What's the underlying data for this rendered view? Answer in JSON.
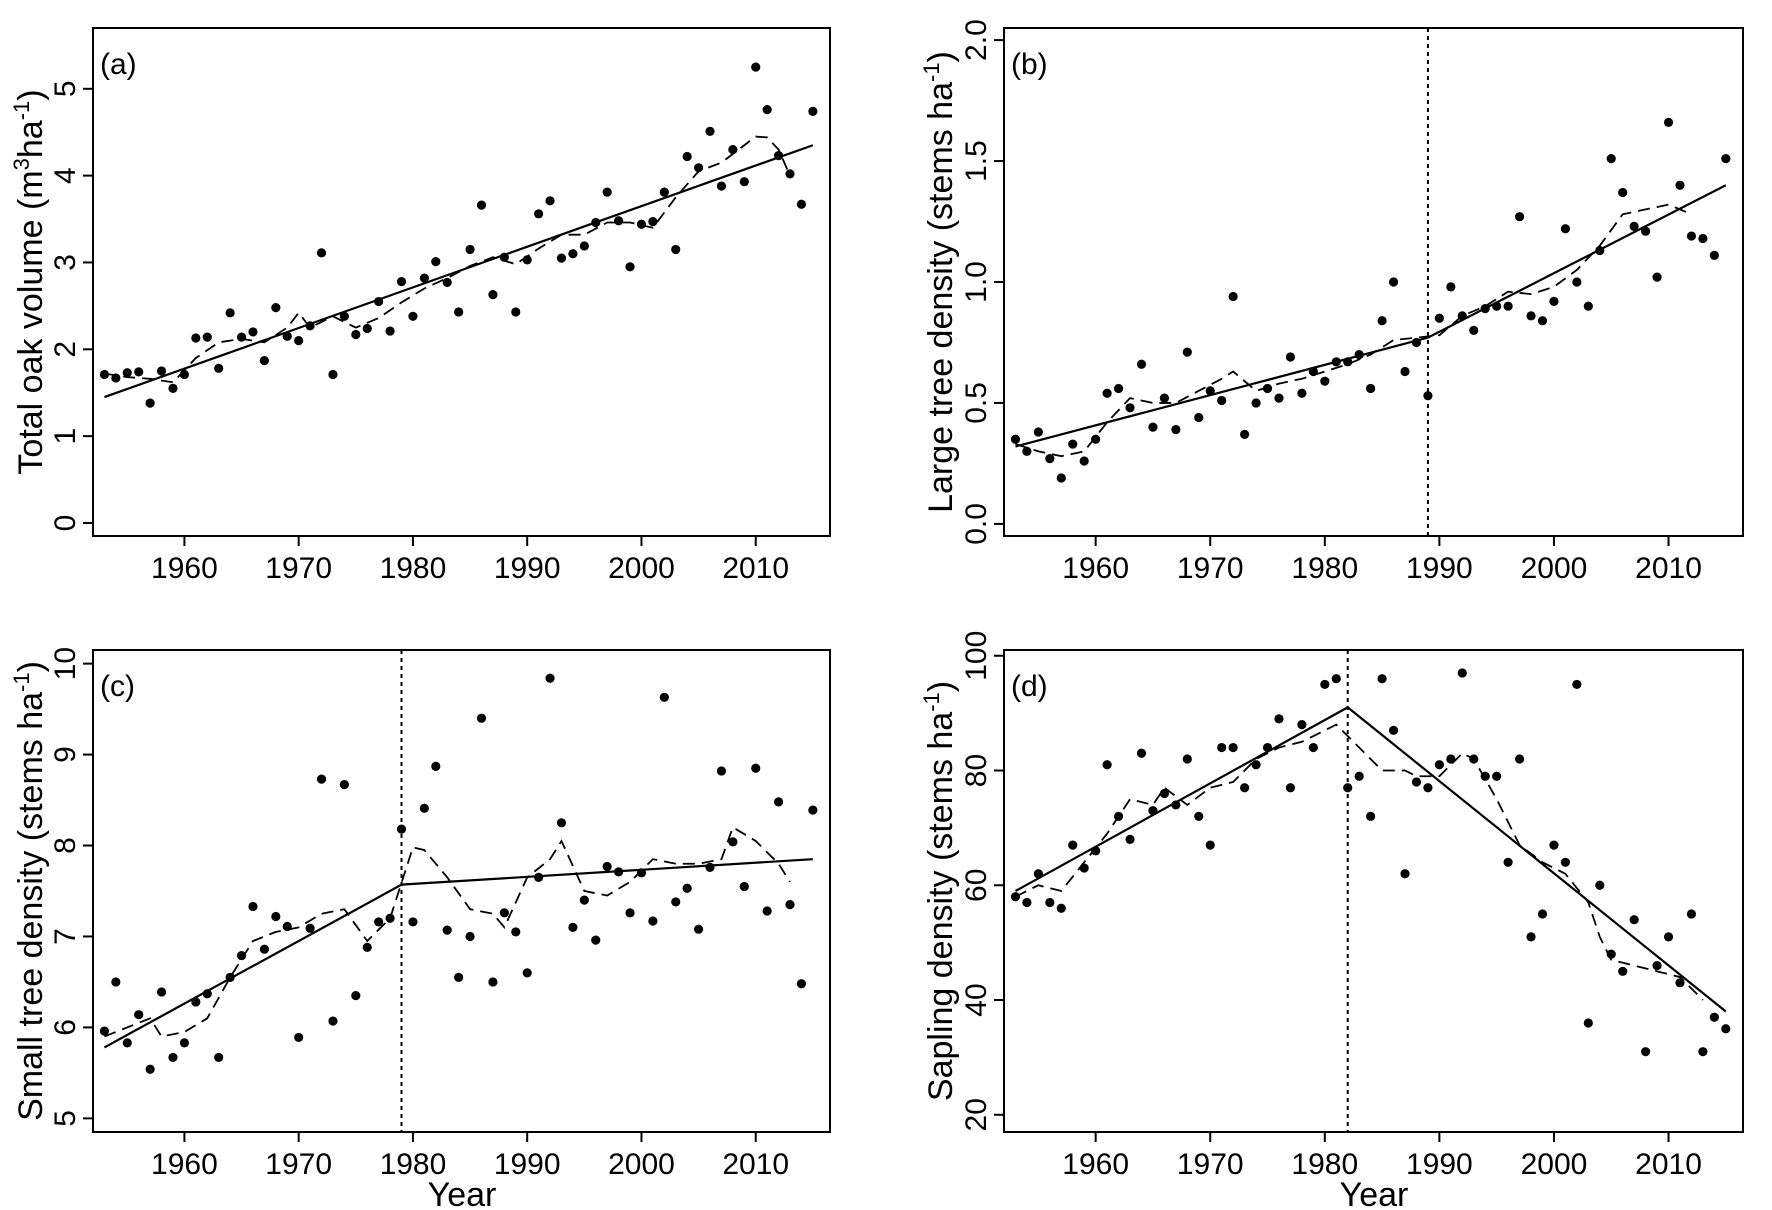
{
  "chart_data": [
    {
      "type": "scatter",
      "panel_label": "(a)",
      "ylabel_main": "Total oak volume (m",
      "ylabel_sup1": "3",
      "ylabel_mid": "ha",
      "ylabel_sup2": "-1",
      "ylabel_end": ")",
      "xlabel": "",
      "xlim": [
        1952,
        2016.5
      ],
      "ylim": [
        -0.15,
        5.7
      ],
      "xticks": [
        1960,
        1970,
        1980,
        1990,
        2000,
        2010
      ],
      "yticks": [
        0,
        1,
        2,
        3,
        4,
        5
      ],
      "ytick_labels": [
        "0",
        "1",
        "2",
        "3",
        "4",
        "5"
      ],
      "breakpoint": null,
      "x": [
        1953,
        1954,
        1955,
        1956,
        1957,
        1958,
        1959,
        1960,
        1961,
        1962,
        1963,
        1964,
        1965,
        1966,
        1967,
        1968,
        1969,
        1970,
        1971,
        1972,
        1973,
        1974,
        1975,
        1976,
        1977,
        1978,
        1979,
        1980,
        1981,
        1982,
        1983,
        1984,
        1985,
        1986,
        1987,
        1988,
        1989,
        1990,
        1991,
        1992,
        1993,
        1994,
        1995,
        1996,
        1997,
        1998,
        1999,
        2000,
        2001,
        2002,
        2003,
        2004,
        2005,
        2006,
        2007,
        2008,
        2009,
        2010,
        2011,
        2012,
        2013,
        2014,
        2015
      ],
      "y": [
        1.71,
        1.67,
        1.73,
        1.74,
        1.38,
        1.75,
        1.55,
        1.71,
        2.13,
        2.14,
        1.78,
        2.42,
        2.14,
        2.2,
        1.87,
        2.48,
        2.15,
        2.1,
        2.27,
        3.11,
        1.71,
        2.38,
        2.17,
        2.24,
        2.55,
        2.21,
        2.78,
        2.38,
        2.82,
        3.01,
        2.77,
        2.43,
        3.15,
        3.66,
        2.63,
        3.06,
        2.43,
        3.03,
        3.56,
        3.71,
        3.05,
        3.1,
        3.19,
        3.46,
        3.81,
        3.48,
        2.95,
        3.44,
        3.47,
        3.81,
        3.15,
        4.22,
        4.09,
        4.51,
        3.88,
        4.3,
        3.93,
        5.25,
        4.76,
        4.23,
        4.02,
        3.67,
        4.74
      ],
      "fit_line": [
        [
          1953,
          1.45
        ],
        [
          2015,
          4.35
        ]
      ],
      "smooth": [
        [
          1953,
          1.72
        ],
        [
          1955,
          1.68
        ],
        [
          1957,
          1.66
        ],
        [
          1959,
          1.62
        ],
        [
          1961,
          1.9
        ],
        [
          1963,
          2.08
        ],
        [
          1965,
          2.12
        ],
        [
          1967,
          2.08
        ],
        [
          1969,
          2.25
        ],
        [
          1970,
          2.42
        ],
        [
          1971,
          2.25
        ],
        [
          1973,
          2.38
        ],
        [
          1975,
          2.25
        ],
        [
          1977,
          2.36
        ],
        [
          1979,
          2.54
        ],
        [
          1981,
          2.7
        ],
        [
          1983,
          2.82
        ],
        [
          1985,
          2.96
        ],
        [
          1987,
          3.06
        ],
        [
          1989,
          2.98
        ],
        [
          1991,
          3.16
        ],
        [
          1993,
          3.32
        ],
        [
          1995,
          3.32
        ],
        [
          1997,
          3.46
        ],
        [
          1999,
          3.46
        ],
        [
          2001,
          3.4
        ],
        [
          2003,
          3.75
        ],
        [
          2005,
          4.05
        ],
        [
          2007,
          4.15
        ],
        [
          2009,
          4.35
        ],
        [
          2010,
          4.45
        ],
        [
          2011,
          4.44
        ],
        [
          2012,
          4.3
        ],
        [
          2013,
          4.0
        ]
      ]
    },
    {
      "type": "scatter",
      "panel_label": "(b)",
      "ylabel_main": "Large tree density (stems ha",
      "ylabel_sup1": "-1",
      "ylabel_mid": "",
      "ylabel_sup2": "",
      "ylabel_end": ")",
      "xlabel": "",
      "xlim": [
        1952,
        2016.5
      ],
      "ylim": [
        -0.05,
        2.05
      ],
      "xticks": [
        1960,
        1970,
        1980,
        1990,
        2000,
        2010
      ],
      "yticks": [
        0.0,
        0.5,
        1.0,
        1.5,
        2.0
      ],
      "ytick_labels": [
        "0.0",
        "0.5",
        "1.0",
        "1.5",
        "2.0"
      ],
      "breakpoint": 1989,
      "x": [
        1953,
        1954,
        1955,
        1956,
        1957,
        1958,
        1959,
        1960,
        1961,
        1962,
        1963,
        1964,
        1965,
        1966,
        1967,
        1968,
        1969,
        1970,
        1971,
        1972,
        1973,
        1974,
        1975,
        1976,
        1977,
        1978,
        1979,
        1980,
        1981,
        1982,
        1983,
        1984,
        1985,
        1986,
        1987,
        1988,
        1989,
        1990,
        1991,
        1992,
        1993,
        1994,
        1995,
        1996,
        1997,
        1998,
        1999,
        2000,
        2001,
        2002,
        2003,
        2004,
        2005,
        2006,
        2007,
        2008,
        2009,
        2010,
        2011,
        2012,
        2013,
        2014,
        2015
      ],
      "y": [
        0.35,
        0.3,
        0.38,
        0.27,
        0.19,
        0.33,
        0.26,
        0.35,
        0.54,
        0.56,
        0.48,
        0.66,
        0.4,
        0.52,
        0.39,
        0.71,
        0.44,
        0.55,
        0.51,
        0.94,
        0.37,
        0.5,
        0.56,
        0.52,
        0.69,
        0.54,
        0.63,
        0.59,
        0.67,
        0.67,
        0.7,
        0.56,
        0.84,
        1.0,
        0.63,
        0.75,
        0.53,
        0.85,
        0.98,
        0.86,
        0.8,
        0.89,
        0.9,
        0.9,
        1.27,
        0.86,
        0.84,
        0.92,
        1.22,
        1.0,
        0.9,
        1.13,
        1.51,
        1.37,
        1.23,
        1.21,
        1.02,
        1.66,
        1.4,
        1.19,
        1.18,
        1.11,
        1.51
      ],
      "fit_line": [
        [
          1953,
          0.32
        ],
        [
          1989,
          0.77
        ],
        [
          2015,
          1.4
        ]
      ],
      "smooth": [
        [
          1953,
          0.33
        ],
        [
          1955,
          0.3
        ],
        [
          1957,
          0.28
        ],
        [
          1959,
          0.3
        ],
        [
          1961,
          0.42
        ],
        [
          1963,
          0.52
        ],
        [
          1965,
          0.5
        ],
        [
          1967,
          0.5
        ],
        [
          1969,
          0.55
        ],
        [
          1971,
          0.6
        ],
        [
          1972,
          0.63
        ],
        [
          1974,
          0.55
        ],
        [
          1976,
          0.58
        ],
        [
          1978,
          0.6
        ],
        [
          1980,
          0.63
        ],
        [
          1982,
          0.66
        ],
        [
          1984,
          0.7
        ],
        [
          1986,
          0.76
        ],
        [
          1988,
          0.77
        ],
        [
          1990,
          0.78
        ],
        [
          1992,
          0.86
        ],
        [
          1994,
          0.9
        ],
        [
          1996,
          0.96
        ],
        [
          1998,
          0.95
        ],
        [
          2000,
          0.98
        ],
        [
          2002,
          1.05
        ],
        [
          2004,
          1.15
        ],
        [
          2006,
          1.28
        ],
        [
          2008,
          1.3
        ],
        [
          2010,
          1.32
        ],
        [
          2012,
          1.28
        ]
      ]
    },
    {
      "type": "scatter",
      "panel_label": "(c)",
      "ylabel_main": "Small tree density (stems ha",
      "ylabel_sup1": "-1",
      "ylabel_mid": "",
      "ylabel_sup2": "",
      "ylabel_end": ")",
      "xlabel": "Year",
      "xlim": [
        1952,
        2016.5
      ],
      "ylim": [
        4.85,
        10.15
      ],
      "xticks": [
        1960,
        1970,
        1980,
        1990,
        2000,
        2010
      ],
      "yticks": [
        5,
        6,
        7,
        8,
        9,
        10
      ],
      "ytick_labels": [
        "5",
        "6",
        "7",
        "8",
        "9",
        "10"
      ],
      "breakpoint": 1979,
      "x": [
        1953,
        1954,
        1955,
        1956,
        1957,
        1958,
        1959,
        1960,
        1961,
        1962,
        1963,
        1964,
        1965,
        1966,
        1967,
        1968,
        1969,
        1970,
        1971,
        1972,
        1973,
        1974,
        1975,
        1976,
        1977,
        1978,
        1979,
        1980,
        1981,
        1982,
        1983,
        1984,
        1985,
        1986,
        1987,
        1988,
        1989,
        1990,
        1991,
        1992,
        1993,
        1994,
        1995,
        1996,
        1997,
        1998,
        1999,
        2000,
        2001,
        2002,
        2003,
        2004,
        2005,
        2006,
        2007,
        2008,
        2009,
        2010,
        2011,
        2012,
        2013,
        2014,
        2015
      ],
      "y": [
        5.96,
        6.5,
        5.83,
        6.14,
        5.54,
        6.39,
        5.67,
        5.83,
        6.28,
        6.37,
        5.67,
        6.55,
        6.79,
        7.33,
        6.86,
        7.22,
        7.11,
        5.89,
        7.09,
        8.73,
        6.07,
        8.67,
        6.35,
        6.88,
        7.16,
        7.2,
        8.18,
        7.16,
        8.41,
        8.87,
        7.07,
        6.55,
        7.0,
        9.4,
        6.5,
        7.26,
        7.05,
        6.6,
        7.65,
        9.84,
        8.25,
        7.1,
        7.4,
        6.96,
        7.77,
        7.71,
        7.26,
        7.7,
        7.17,
        9.63,
        7.38,
        7.53,
        7.08,
        7.76,
        8.82,
        8.04,
        7.55,
        8.85,
        7.28,
        8.48,
        7.35,
        6.48,
        8.39
      ],
      "fit_line": [
        [
          1953,
          5.78
        ],
        [
          1979,
          7.57
        ],
        [
          2015,
          7.85
        ]
      ],
      "smooth": [
        [
          1953,
          5.9
        ],
        [
          1955,
          6.0
        ],
        [
          1957,
          6.1
        ],
        [
          1958,
          5.9
        ],
        [
          1960,
          5.95
        ],
        [
          1962,
          6.1
        ],
        [
          1964,
          6.55
        ],
        [
          1966,
          6.95
        ],
        [
          1968,
          7.05
        ],
        [
          1970,
          7.1
        ],
        [
          1972,
          7.25
        ],
        [
          1974,
          7.3
        ],
        [
          1976,
          6.95
        ],
        [
          1978,
          7.2
        ],
        [
          1980,
          7.98
        ],
        [
          1981,
          7.95
        ],
        [
          1983,
          7.65
        ],
        [
          1985,
          7.3
        ],
        [
          1987,
          7.25
        ],
        [
          1988,
          7.1
        ],
        [
          1990,
          7.65
        ],
        [
          1992,
          7.85
        ],
        [
          1993,
          8.05
        ],
        [
          1995,
          7.5
        ],
        [
          1997,
          7.45
        ],
        [
          1999,
          7.6
        ],
        [
          2001,
          7.85
        ],
        [
          2003,
          7.8
        ],
        [
          2005,
          7.8
        ],
        [
          2007,
          7.85
        ],
        [
          2008,
          8.2
        ],
        [
          2010,
          8.05
        ],
        [
          2012,
          7.8
        ],
        [
          2013,
          7.6
        ]
      ]
    },
    {
      "type": "scatter",
      "panel_label": "(d)",
      "ylabel_main": "Sapling density (stems ha",
      "ylabel_sup1": "-1",
      "ylabel_mid": "",
      "ylabel_sup2": "",
      "ylabel_end": ")",
      "xlabel": "Year",
      "xlim": [
        1952,
        2016.5
      ],
      "ylim": [
        17,
        101
      ],
      "xticks": [
        1960,
        1970,
        1980,
        1990,
        2000,
        2010
      ],
      "yticks": [
        20,
        40,
        60,
        80,
        100
      ],
      "ytick_labels": [
        "20",
        "40",
        "60",
        "80",
        "100"
      ],
      "breakpoint": 1982,
      "x": [
        1953,
        1954,
        1955,
        1956,
        1957,
        1958,
        1959,
        1960,
        1961,
        1962,
        1963,
        1964,
        1965,
        1966,
        1967,
        1968,
        1969,
        1970,
        1971,
        1972,
        1973,
        1974,
        1975,
        1976,
        1977,
        1978,
        1979,
        1980,
        1981,
        1982,
        1983,
        1984,
        1985,
        1986,
        1987,
        1988,
        1989,
        1990,
        1991,
        1992,
        1993,
        1994,
        1995,
        1996,
        1997,
        1998,
        1999,
        2000,
        2001,
        2002,
        2003,
        2004,
        2005,
        2006,
        2007,
        2008,
        2009,
        2010,
        2011,
        2012,
        2013,
        2014,
        2015
      ],
      "y": [
        58,
        57,
        62,
        57,
        56,
        67,
        63,
        66,
        81,
        72,
        68,
        83,
        73,
        76,
        74,
        82,
        72,
        67,
        84,
        84,
        77,
        81,
        84,
        89,
        77,
        88,
        84,
        95,
        96,
        77,
        79,
        72,
        96,
        87,
        62,
        78,
        77,
        81,
        82,
        97,
        82,
        79,
        79,
        64,
        82,
        51,
        55,
        67,
        64,
        95,
        36,
        60,
        48,
        45,
        54,
        31,
        46,
        51,
        43,
        55,
        31,
        37,
        35
      ],
      "fit_line": [
        [
          1953,
          59
        ],
        [
          1982,
          91
        ],
        [
          2015,
          38
        ]
      ],
      "smooth": [
        [
          1953,
          58
        ],
        [
          1955,
          60
        ],
        [
          1957,
          59
        ],
        [
          1959,
          64
        ],
        [
          1961,
          69
        ],
        [
          1963,
          75
        ],
        [
          1965,
          74
        ],
        [
          1966,
          77
        ],
        [
          1968,
          74
        ],
        [
          1970,
          77
        ],
        [
          1972,
          78
        ],
        [
          1974,
          82
        ],
        [
          1976,
          84
        ],
        [
          1978,
          85
        ],
        [
          1980,
          87
        ],
        [
          1981,
          88
        ],
        [
          1982,
          86
        ],
        [
          1983,
          84
        ],
        [
          1985,
          80
        ],
        [
          1987,
          80
        ],
        [
          1988,
          79
        ],
        [
          1990,
          79
        ],
        [
          1991,
          81
        ],
        [
          1992,
          83
        ],
        [
          1993,
          82
        ],
        [
          1995,
          75
        ],
        [
          1997,
          67
        ],
        [
          1999,
          64
        ],
        [
          2001,
          62
        ],
        [
          2003,
          57
        ],
        [
          2004,
          51
        ],
        [
          2005,
          47
        ],
        [
          2007,
          46
        ],
        [
          2009,
          45
        ],
        [
          2011,
          44
        ],
        [
          2013,
          40
        ]
      ]
    }
  ]
}
